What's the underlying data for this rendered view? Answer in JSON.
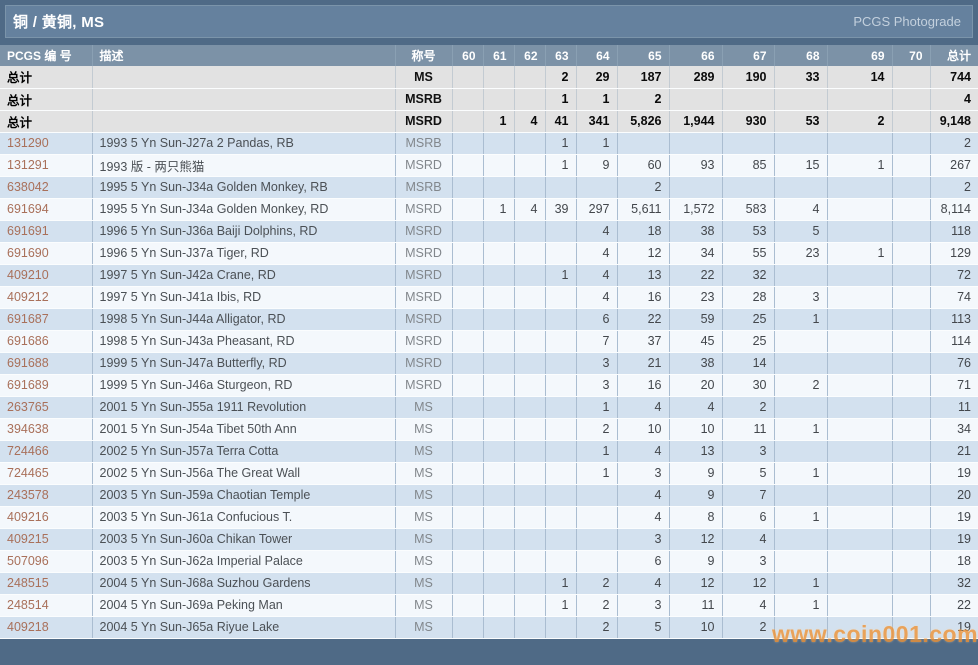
{
  "header": {
    "title": "铜 / 黄铜, MS",
    "brand": "PCGS Photograde"
  },
  "table": {
    "columns": {
      "number": "PCGS 编 号",
      "description": "描述",
      "designation": "称号",
      "grades": [
        "60",
        "61",
        "62",
        "63",
        "64",
        "65",
        "66",
        "67",
        "68",
        "69",
        "70"
      ],
      "total": "总计"
    },
    "summary_rows": [
      {
        "label": "总计",
        "description": "",
        "designation": "MS",
        "grades": [
          "",
          "",
          "",
          "2",
          "29",
          "187",
          "289",
          "190",
          "33",
          "14",
          ""
        ],
        "total": "744"
      },
      {
        "label": "总计",
        "description": "",
        "designation": "MSRB",
        "grades": [
          "",
          "",
          "",
          "1",
          "1",
          "2",
          "",
          "",
          "",
          "",
          ""
        ],
        "total": "4"
      },
      {
        "label": "总计",
        "description": "",
        "designation": "MSRD",
        "grades": [
          "",
          "1",
          "4",
          "41",
          "341",
          "5,826",
          "1,944",
          "930",
          "53",
          "2",
          ""
        ],
        "total": "9,148"
      }
    ],
    "rows": [
      {
        "number": "131290",
        "description": "1993 5 Yn Sun-J27a 2 Pandas, RB",
        "designation": "MSRB",
        "grades": [
          "",
          "",
          "",
          "1",
          "1",
          "",
          "",
          "",
          "",
          "",
          ""
        ],
        "total": "2"
      },
      {
        "number": "131291",
        "description": "1993 版 - 两只熊猫",
        "designation": "MSRD",
        "grades": [
          "",
          "",
          "",
          "1",
          "9",
          "60",
          "93",
          "85",
          "15",
          "1",
          ""
        ],
        "total": "267"
      },
      {
        "number": "638042",
        "description": "1995 5 Yn Sun-J34a Golden Monkey, RB",
        "designation": "MSRB",
        "grades": [
          "",
          "",
          "",
          "",
          "",
          "2",
          "",
          "",
          "",
          "",
          ""
        ],
        "total": "2"
      },
      {
        "number": "691694",
        "description": "1995 5 Yn Sun-J34a Golden Monkey, RD",
        "designation": "MSRD",
        "grades": [
          "",
          "1",
          "4",
          "39",
          "297",
          "5,611",
          "1,572",
          "583",
          "4",
          "",
          ""
        ],
        "total": "8,114"
      },
      {
        "number": "691691",
        "description": "1996 5 Yn Sun-J36a Baiji Dolphins, RD",
        "designation": "MSRD",
        "grades": [
          "",
          "",
          "",
          "",
          "4",
          "18",
          "38",
          "53",
          "5",
          "",
          ""
        ],
        "total": "118"
      },
      {
        "number": "691690",
        "description": "1996 5 Yn Sun-J37a Tiger, RD",
        "designation": "MSRD",
        "grades": [
          "",
          "",
          "",
          "",
          "4",
          "12",
          "34",
          "55",
          "23",
          "1",
          ""
        ],
        "total": "129"
      },
      {
        "number": "409210",
        "description": "1997 5 Yn Sun-J42a Crane, RD",
        "designation": "MSRD",
        "grades": [
          "",
          "",
          "",
          "1",
          "4",
          "13",
          "22",
          "32",
          "",
          "",
          ""
        ],
        "total": "72"
      },
      {
        "number": "409212",
        "description": "1997 5 Yn Sun-J41a Ibis, RD",
        "designation": "MSRD",
        "grades": [
          "",
          "",
          "",
          "",
          "4",
          "16",
          "23",
          "28",
          "3",
          "",
          ""
        ],
        "total": "74"
      },
      {
        "number": "691687",
        "description": "1998 5 Yn Sun-J44a Alligator, RD",
        "designation": "MSRD",
        "grades": [
          "",
          "",
          "",
          "",
          "6",
          "22",
          "59",
          "25",
          "1",
          "",
          ""
        ],
        "total": "113"
      },
      {
        "number": "691686",
        "description": "1998 5 Yn Sun-J43a Pheasant, RD",
        "designation": "MSRD",
        "grades": [
          "",
          "",
          "",
          "",
          "7",
          "37",
          "45",
          "25",
          "",
          "",
          ""
        ],
        "total": "114"
      },
      {
        "number": "691688",
        "description": "1999 5 Yn Sun-J47a Butterfly, RD",
        "designation": "MSRD",
        "grades": [
          "",
          "",
          "",
          "",
          "3",
          "21",
          "38",
          "14",
          "",
          "",
          ""
        ],
        "total": "76"
      },
      {
        "number": "691689",
        "description": "1999 5 Yn Sun-J46a Sturgeon, RD",
        "designation": "MSRD",
        "grades": [
          "",
          "",
          "",
          "",
          "3",
          "16",
          "20",
          "30",
          "2",
          "",
          ""
        ],
        "total": "71"
      },
      {
        "number": "263765",
        "description": "2001 5 Yn Sun-J55a 1911 Revolution",
        "designation": "MS",
        "grades": [
          "",
          "",
          "",
          "",
          "1",
          "4",
          "4",
          "2",
          "",
          "",
          ""
        ],
        "total": "11"
      },
      {
        "number": "394638",
        "description": "2001 5 Yn Sun-J54a Tibet 50th Ann",
        "designation": "MS",
        "grades": [
          "",
          "",
          "",
          "",
          "2",
          "10",
          "10",
          "11",
          "1",
          "",
          ""
        ],
        "total": "34"
      },
      {
        "number": "724466",
        "description": "2002 5 Yn Sun-J57a Terra Cotta",
        "designation": "MS",
        "grades": [
          "",
          "",
          "",
          "",
          "1",
          "4",
          "13",
          "3",
          "",
          "",
          ""
        ],
        "total": "21"
      },
      {
        "number": "724465",
        "description": "2002 5 Yn Sun-J56a The Great Wall",
        "designation": "MS",
        "grades": [
          "",
          "",
          "",
          "",
          "1",
          "3",
          "9",
          "5",
          "1",
          "",
          ""
        ],
        "total": "19"
      },
      {
        "number": "243578",
        "description": "2003 5 Yn Sun-J59a Chaotian Temple",
        "designation": "MS",
        "grades": [
          "",
          "",
          "",
          "",
          "",
          "4",
          "9",
          "7",
          "",
          "",
          ""
        ],
        "total": "20"
      },
      {
        "number": "409216",
        "description": "2003 5 Yn Sun-J61a Confucious T.",
        "designation": "MS",
        "grades": [
          "",
          "",
          "",
          "",
          "",
          "4",
          "8",
          "6",
          "1",
          "",
          ""
        ],
        "total": "19"
      },
      {
        "number": "409215",
        "description": "2003 5 Yn Sun-J60a Chikan Tower",
        "designation": "MS",
        "grades": [
          "",
          "",
          "",
          "",
          "",
          "3",
          "12",
          "4",
          "",
          "",
          ""
        ],
        "total": "19"
      },
      {
        "number": "507096",
        "description": "2003 5 Yn Sun-J62a Imperial Palace",
        "designation": "MS",
        "grades": [
          "",
          "",
          "",
          "",
          "",
          "6",
          "9",
          "3",
          "",
          "",
          ""
        ],
        "total": "18"
      },
      {
        "number": "248515",
        "description": "2004 5 Yn Sun-J68a Suzhou Gardens",
        "designation": "MS",
        "grades": [
          "",
          "",
          "",
          "1",
          "2",
          "4",
          "12",
          "12",
          "1",
          "",
          ""
        ],
        "total": "32"
      },
      {
        "number": "248514",
        "description": "2004 5 Yn Sun-J69a Peking Man",
        "designation": "MS",
        "grades": [
          "",
          "",
          "",
          "1",
          "2",
          "3",
          "11",
          "4",
          "1",
          "",
          ""
        ],
        "total": "22"
      },
      {
        "number": "409218",
        "description": "2004 5 Yn Sun-J65a Riyue Lake",
        "designation": "MS",
        "grades": [
          "",
          "",
          "",
          "",
          "2",
          "5",
          "10",
          "2",
          "",
          "",
          ""
        ],
        "total": "19"
      }
    ]
  },
  "watermark": "www.coin001.com",
  "colors": {
    "page_background": "#4f6a86",
    "title_bar": "#65819e",
    "header_row": "#7c92a7",
    "summary_row": "#e2e2e2",
    "row_blue": "#d3e1ef",
    "row_white": "#f4f8fc",
    "number_link": "#a9705a",
    "watermark_orange": "#ef9336"
  }
}
